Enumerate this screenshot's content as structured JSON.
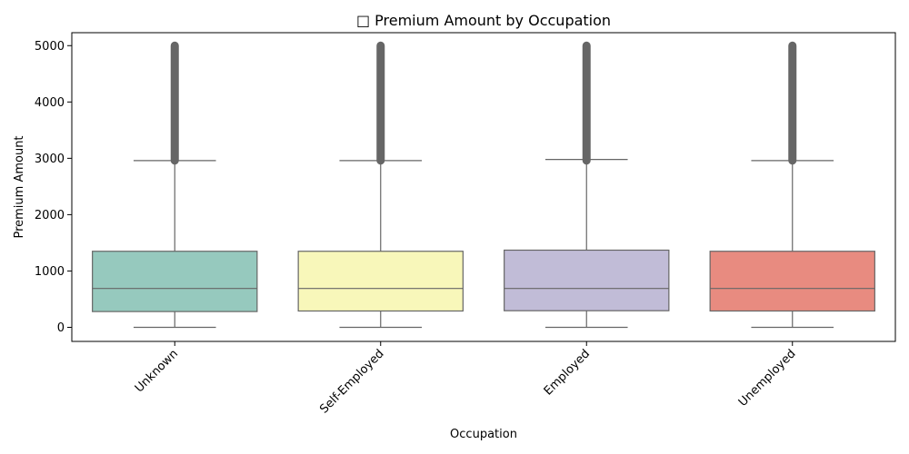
{
  "chart_data": {
    "type": "box",
    "title": "□ Premium Amount by Occupation",
    "xlabel": "Occupation",
    "ylabel": "Premium Amount",
    "ylim": [
      -250,
      5230
    ],
    "yticks": [
      0,
      1000,
      2000,
      3000,
      4000,
      5000
    ],
    "categories": [
      "Unknown",
      "Self-Employed",
      "Employed",
      "Unemployed"
    ],
    "colors": [
      "#96c9be",
      "#f8f7ba",
      "#c1bcd7",
      "#e88b80"
    ],
    "boxes": [
      {
        "min": 0,
        "q1": 280,
        "median": 690,
        "q3": 1350,
        "whisker_high": 2960,
        "outliers_range": [
          2960,
          5000
        ]
      },
      {
        "min": 0,
        "q1": 290,
        "median": 690,
        "q3": 1350,
        "whisker_high": 2960,
        "outliers_range": [
          2960,
          5000
        ]
      },
      {
        "min": 0,
        "q1": 295,
        "median": 690,
        "q3": 1370,
        "whisker_high": 2980,
        "outliers_range": [
          2960,
          5000
        ]
      },
      {
        "min": 0,
        "q1": 290,
        "median": 690,
        "q3": 1350,
        "whisker_high": 2960,
        "outliers_range": [
          2960,
          5000
        ]
      }
    ],
    "grid": false,
    "legend": "none"
  }
}
